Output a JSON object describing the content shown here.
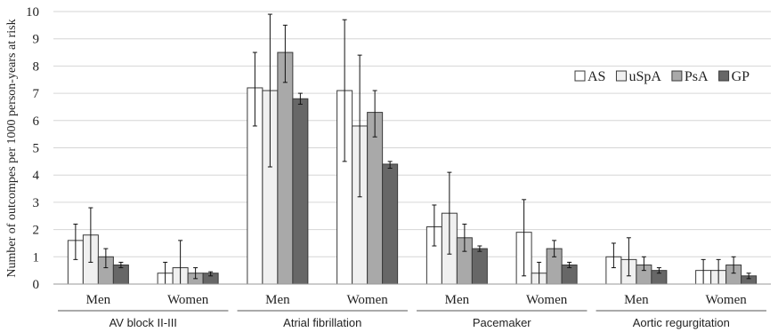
{
  "chart_data": {
    "type": "bar",
    "ylabel": "Number of outcompes per 1000 person-years at risk",
    "ylim": [
      0,
      10
    ],
    "yticks": [
      "0",
      "1",
      "2",
      "3",
      "4",
      "5",
      "6",
      "7",
      "8",
      "9",
      "10"
    ],
    "grid": true,
    "legend_position": "top-right",
    "series": [
      {
        "name": "AS",
        "color": "#ffffff",
        "values": [
          1.6,
          0.4,
          7.2,
          7.1,
          2.1,
          1.9,
          1.0,
          0.5
        ],
        "err_low": [
          0.9,
          0.0,
          5.8,
          4.5,
          1.4,
          0.3,
          0.6,
          0.0
        ],
        "err_high": [
          2.2,
          0.8,
          8.5,
          9.7,
          2.9,
          3.1,
          1.5,
          0.9
        ]
      },
      {
        "name": "uSpA",
        "color": "#f0f0f0",
        "values": [
          1.8,
          0.6,
          7.1,
          5.8,
          2.6,
          0.4,
          0.9,
          0.5
        ],
        "err_low": [
          0.8,
          0.0,
          4.3,
          3.2,
          1.1,
          0.0,
          0.3,
          0.0
        ],
        "err_high": [
          2.8,
          1.6,
          9.9,
          8.4,
          4.1,
          0.8,
          1.7,
          0.9
        ]
      },
      {
        "name": "PsA",
        "color": "#a9a9a9",
        "values": [
          1.0,
          0.4,
          8.5,
          6.3,
          1.7,
          1.3,
          0.7,
          0.7
        ],
        "err_low": [
          0.6,
          0.2,
          7.4,
          5.4,
          1.2,
          1.0,
          0.5,
          0.4
        ],
        "err_high": [
          1.3,
          0.6,
          9.5,
          7.1,
          2.2,
          1.6,
          1.0,
          1.0
        ]
      },
      {
        "name": "GP",
        "color": "#676767",
        "values": [
          0.7,
          0.4,
          6.8,
          4.4,
          1.3,
          0.7,
          0.5,
          0.3
        ],
        "err_low": [
          0.6,
          0.3,
          6.6,
          4.25,
          1.2,
          0.6,
          0.4,
          0.2
        ],
        "err_high": [
          0.8,
          0.45,
          7.0,
          4.5,
          1.4,
          0.8,
          0.6,
          0.4
        ]
      }
    ],
    "subcategories": [
      "Men",
      "Women",
      "Men",
      "Women",
      "Men",
      "Women",
      "Men",
      "Women"
    ],
    "groups": [
      "AV block II-III",
      "Atrial fibrillation",
      "Pacemaker",
      "Aortic regurgitation"
    ]
  }
}
